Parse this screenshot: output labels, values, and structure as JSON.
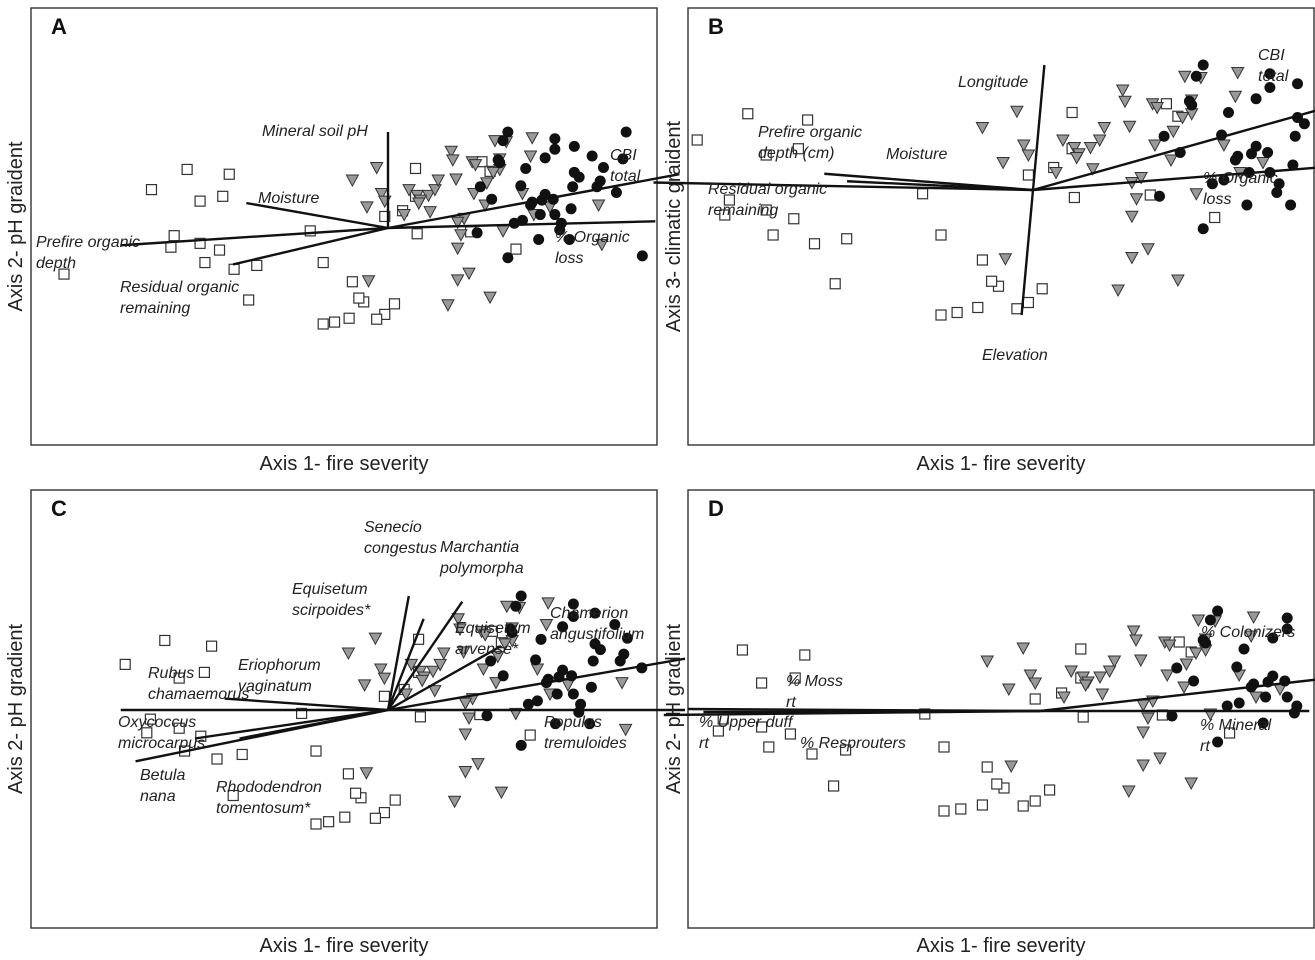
{
  "chart_data": [
    {
      "type": "scatter",
      "panel_label": "A",
      "xlabel": "Axis 1- fire severity",
      "ylabel": "Axis 2- pH gradient",
      "vectors": [
        {
          "name": "Mineral soil pH",
          "x": 0.0,
          "y": 1.0
        },
        {
          "name": "Moisture",
          "x": -0.53,
          "y": 0.26
        },
        {
          "name": "Prefire organic depth",
          "x": -1.0,
          "y": -0.18
        },
        {
          "name": "Residual organic remaining",
          "x": -0.58,
          "y": -0.38
        },
        {
          "name": "CBI total",
          "x": 1.09,
          "y": 0.56
        },
        {
          "name": "% Organic loss",
          "x": 1.0,
          "y": 0.07
        }
      ],
      "series": [
        {
          "name": "squares",
          "points": [
            [
              -1.24,
              0.61
            ],
            [
              -0.98,
              0.56
            ],
            [
              -1.16,
              0.28
            ],
            [
              -1.16,
              -0.16
            ],
            [
              -1.13,
              -0.36
            ],
            [
              -0.48,
              -0.03
            ],
            [
              -0.4,
              -0.36
            ],
            [
              -0.22,
              -0.56
            ],
            [
              -0.02,
              0.12
            ],
            [
              0.09,
              0.18
            ],
            [
              0.17,
              0.62
            ],
            [
              0.58,
              0.69
            ],
            [
              0.63,
              0.59
            ],
            [
              0.17,
              0.33
            ],
            [
              0.18,
              -0.06
            ],
            [
              0.51,
              -0.04
            ],
            [
              0.79,
              -0.22
            ],
            [
              0.04,
              -0.79
            ],
            [
              -0.02,
              -0.9
            ],
            [
              -0.07,
              -0.95
            ],
            [
              -0.24,
              -0.94
            ],
            [
              -0.4,
              -1.0
            ],
            [
              -0.33,
              -0.98
            ],
            [
              -0.15,
              -0.77
            ],
            [
              -0.18,
              -0.73
            ],
            [
              -0.86,
              -0.75
            ],
            [
              -0.95,
              -0.43
            ],
            [
              -1.04,
              -0.23
            ],
            [
              -1.32,
              -0.08
            ],
            [
              -2.0,
              -0.48
            ],
            [
              -0.81,
              -0.39
            ],
            [
              -1.02,
              0.33
            ],
            [
              -1.46,
              0.4
            ],
            [
              -1.34,
              -0.2
            ]
          ]
        },
        {
          "name": "triangles",
          "points": [
            [
              -0.07,
              0.63
            ],
            [
              -0.22,
              0.5
            ],
            [
              -0.04,
              0.36
            ],
            [
              0.13,
              0.4
            ],
            [
              0.18,
              0.34
            ],
            [
              0.25,
              0.34
            ],
            [
              0.29,
              0.4
            ],
            [
              0.31,
              0.5
            ],
            [
              0.42,
              0.51
            ],
            [
              0.69,
              0.61
            ],
            [
              0.61,
              0.47
            ],
            [
              0.2,
              0.29
            ],
            [
              0.26,
              0.17
            ],
            [
              0.19,
              0.26
            ],
            [
              0.1,
              0.14
            ],
            [
              0.45,
              -0.07
            ],
            [
              0.43,
              -0.21
            ],
            [
              0.43,
              -0.54
            ],
            [
              0.47,
              0.1
            ],
            [
              0.53,
              0.36
            ],
            [
              0.65,
              0.58
            ],
            [
              0.52,
              0.69
            ],
            [
              0.88,
              0.75
            ],
            [
              0.89,
              0.94
            ],
            [
              0.66,
              0.91
            ],
            [
              1.0,
              0.22
            ],
            [
              0.9,
              0.14
            ],
            [
              1.3,
              0.24
            ],
            [
              0.83,
              0.36
            ],
            [
              1.32,
              -0.17
            ],
            [
              0.6,
              0.24
            ],
            [
              0.71,
              -0.03
            ],
            [
              0.69,
              0.72
            ],
            [
              0.39,
              0.8
            ],
            [
              -0.02,
              0.28
            ],
            [
              -0.13,
              0.22
            ],
            [
              0.4,
              0.71
            ],
            [
              0.73,
              0.9
            ],
            [
              0.54,
              0.66
            ],
            [
              0.43,
              0.06
            ],
            [
              0.37,
              -0.8
            ],
            [
              0.63,
              -0.72
            ],
            [
              0.5,
              -0.47
            ],
            [
              -0.12,
              -0.55
            ]
          ]
        },
        {
          "name": "circles",
          "points": [
            [
              1.29,
              0.43
            ],
            [
              0.97,
              0.73
            ],
            [
              1.45,
              0.72
            ],
            [
              1.03,
              0.93
            ],
            [
              0.74,
              1.0
            ],
            [
              0.68,
              0.71
            ],
            [
              0.82,
              0.44
            ],
            [
              0.57,
              0.43
            ],
            [
              0.97,
              0.35
            ],
            [
              0.78,
              0.05
            ],
            [
              0.64,
              0.3
            ],
            [
              0.83,
              0.08
            ],
            [
              0.94,
              0.14
            ],
            [
              1.06,
              -0.02
            ],
            [
              1.13,
              0.2
            ],
            [
              1.03,
              0.14
            ],
            [
              0.95,
              0.29
            ],
            [
              0.89,
              0.27
            ],
            [
              1.14,
              0.43
            ],
            [
              1.02,
              0.3
            ],
            [
              0.85,
              0.62
            ],
            [
              0.69,
              0.68
            ],
            [
              1.47,
              1.0
            ],
            [
              1.41,
              0.37
            ],
            [
              1.33,
              0.63
            ],
            [
              1.15,
              0.85
            ],
            [
              1.07,
              0.05
            ],
            [
              1.12,
              -0.12
            ],
            [
              1.57,
              -0.29
            ],
            [
              0.93,
              -0.12
            ],
            [
              1.15,
              0.58
            ],
            [
              1.03,
              0.82
            ],
            [
              0.71,
              0.91
            ],
            [
              1.26,
              0.75
            ],
            [
              1.31,
              0.49
            ],
            [
              1.18,
              0.53
            ],
            [
              0.55,
              -0.05
            ],
            [
              0.74,
              -0.31
            ],
            [
              0.88,
              0.24
            ]
          ]
        }
      ]
    },
    {
      "type": "scatter",
      "panel_label": "B",
      "xlabel": "Axis 1- fire severity",
      "ylabel": "Axis 3- climatic graident",
      "vectors": [
        {
          "name": "Longitude",
          "x": 0.03,
          "y": 1.0
        },
        {
          "name": "Prefire organic depth (cm)",
          "x": -0.55,
          "y": 0.13
        },
        {
          "name": "Moisture",
          "x": -0.49,
          "y": 0.07
        },
        {
          "name": "Residual organic remaining",
          "x": -1.0,
          "y": 0.06
        },
        {
          "name": "Elevation",
          "x": -0.03,
          "y": -1.0
        },
        {
          "name": "CBI total",
          "x": 0.88,
          "y": 0.75
        },
        {
          "name": "% Organic loss",
          "x": 0.88,
          "y": 0.21
        }
      ],
      "series": [
        {
          "name": "squares",
          "points": []
        },
        {
          "name": "triangles",
          "points": []
        },
        {
          "name": "circles",
          "points": []
        }
      ]
    },
    {
      "type": "scatter",
      "panel_label": "C",
      "xlabel": "Axis 1- fire severity",
      "ylabel": "Axis 2- pH gradient",
      "vectors": [
        {
          "name": "Senecio congestus",
          "x": 0.07,
          "y": 1.0
        },
        {
          "name": "Marchantia polymorpha",
          "x": 0.25,
          "y": 0.95
        },
        {
          "name": "Equisetum scirpoides*",
          "x": 0.12,
          "y": 0.8
        },
        {
          "name": "Equisetum arvense*",
          "x": 0.38,
          "y": 0.56
        },
        {
          "name": "Chamerion angustifolium",
          "x": 1.0,
          "y": 0.45
        },
        {
          "name": "Populus tremuloides",
          "x": 1.0,
          "y": 0.0
        },
        {
          "name": "Eriophorum vaginatum",
          "x": -0.55,
          "y": 0.1
        },
        {
          "name": "Rubus chamaemorus",
          "x": -0.9,
          "y": 0.0
        },
        {
          "name": "Oxycoccus microcarpus",
          "x": -0.65,
          "y": -0.25
        },
        {
          "name": "Betula nana",
          "x": -0.85,
          "y": -0.45
        },
        {
          "name": "Rhododendron tomentosum*",
          "x": -0.5,
          "y": -0.25
        }
      ],
      "series": []
    },
    {
      "type": "scatter",
      "panel_label": "D",
      "xlabel": "Axis 1- fire severity",
      "ylabel": "Axis 2- pH gradient",
      "vectors": [
        {
          "name": "% Colonizers",
          "x": 1.0,
          "y": 0.45
        },
        {
          "name": "% Mineral rt",
          "x": 0.68,
          "y": 0.0
        },
        {
          "name": "% Moss rt",
          "x": -0.89,
          "y": 0.02
        },
        {
          "name": "% Upper duff rt",
          "x": -0.95,
          "y": -0.04
        },
        {
          "name": "% Resprouters",
          "x": -0.85,
          "y": -0.01
        }
      ],
      "series": []
    }
  ],
  "panels": [
    {
      "label": "A",
      "xlabel": "Axis 1- fire severity",
      "ylabel": "Axis 2- pH graident",
      "vector_labels": [
        {
          "lines": [
            "Mineral soil pH"
          ]
        },
        {
          "lines": [
            "Moisture"
          ]
        },
        {
          "lines": [
            "Prefire organic",
            "depth"
          ]
        },
        {
          "lines": [
            "Residual organic",
            "remaining"
          ]
        },
        {
          "lines": [
            "CBI",
            "total"
          ]
        },
        {
          "lines": [
            "% Organic",
            "loss"
          ]
        }
      ]
    },
    {
      "label": "B",
      "xlabel": "Axis 1- fire severity",
      "ylabel": "Axis 3- climatic graident",
      "vector_labels": [
        {
          "lines": [
            "Longitude"
          ]
        },
        {
          "lines": [
            "Prefire organic",
            "depth (cm)"
          ]
        },
        {
          "lines": [
            "Moisture"
          ]
        },
        {
          "lines": [
            "Residual organic",
            "remaining"
          ]
        },
        {
          "lines": [
            "Elevation"
          ]
        },
        {
          "lines": [
            "CBI",
            "total"
          ]
        },
        {
          "lines": [
            "% Organic",
            "loss"
          ]
        }
      ]
    },
    {
      "label": "C",
      "xlabel": "Axis 1- fire severity",
      "ylabel": "Axis 2- pH gradient",
      "vector_labels": [
        {
          "lines": [
            "Senecio",
            "congestus"
          ]
        },
        {
          "lines": [
            "Marchantia",
            "polymorpha"
          ]
        },
        {
          "lines": [
            "Equisetum",
            "scirpoides*"
          ]
        },
        {
          "lines": [
            "Equisetum",
            "arvense*"
          ]
        },
        {
          "lines": [
            "Chamerion",
            "angustifolium"
          ]
        },
        {
          "lines": [
            "Eriophorum",
            "vaginatum"
          ]
        },
        {
          "lines": [
            "Rubus",
            "chamaemorus"
          ]
        },
        {
          "lines": [
            "Oxycoccus",
            "microcarpus"
          ]
        },
        {
          "lines": [
            "Betula",
            "nana"
          ]
        },
        {
          "lines": [
            "Rhododendron",
            "tomentosum*"
          ]
        },
        {
          "lines": [
            "Populus",
            "tremuloides"
          ]
        }
      ]
    },
    {
      "label": "D",
      "xlabel": "Axis 1- fire severity",
      "ylabel": "Axis 2- pH gradient",
      "vector_labels": [
        {
          "lines": [
            "% Colonizers"
          ]
        },
        {
          "lines": [
            "% Moss",
            "rt"
          ]
        },
        {
          "lines": [
            "% Upper duff",
            "rt"
          ]
        },
        {
          "lines": [
            "% Resprouters"
          ]
        },
        {
          "lines": [
            "% Mineral",
            "rt"
          ]
        }
      ]
    }
  ]
}
